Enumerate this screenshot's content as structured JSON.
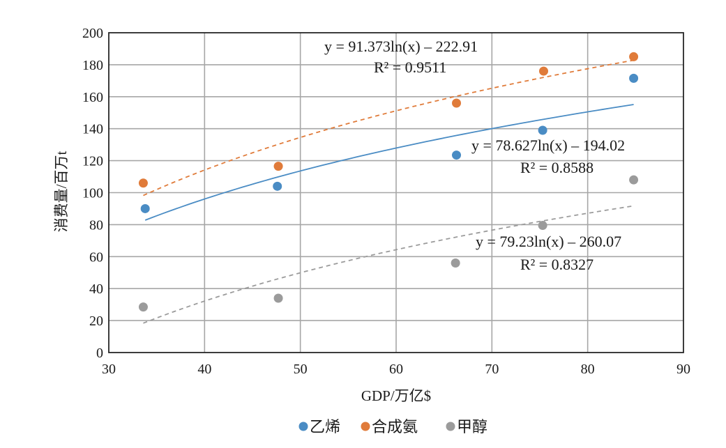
{
  "chart_data": {
    "type": "scatter",
    "xlabel": "GDP/万亿$",
    "ylabel": "消费量/百万t",
    "xlim": [
      30,
      90
    ],
    "ylim": [
      0,
      200
    ],
    "xticks": [
      30,
      40,
      50,
      60,
      70,
      80,
      90
    ],
    "yticks": [
      0,
      20,
      40,
      60,
      80,
      100,
      120,
      140,
      160,
      180,
      200
    ],
    "grid": true,
    "legend_position": "bottom",
    "series": [
      {
        "name": "乙烯",
        "color": "#4a8cc4",
        "x": [
          33.8,
          47.6,
          66.3,
          75.3,
          84.8
        ],
        "y": [
          90,
          104,
          123.5,
          139,
          171.5
        ],
        "trendline": {
          "type": "logarithmic",
          "a": 78.627,
          "b": -194.02,
          "style": "solid",
          "equation": "y = 78.627ln(x) – 194.02",
          "r2": "R² = 0.8588"
        }
      },
      {
        "name": "合成氨",
        "color": "#e07b3a",
        "x": [
          33.6,
          47.7,
          66.3,
          75.4,
          84.8
        ],
        "y": [
          106,
          116.5,
          156,
          176,
          185
        ],
        "trendline": {
          "type": "logarithmic",
          "a": 91.373,
          "b": -222.91,
          "style": "dashed",
          "equation": "y = 91.373ln(x) – 222.91",
          "r2": "R² = 0.9511"
        }
      },
      {
        "name": "甲醇",
        "color": "#9b9b9b",
        "x": [
          33.6,
          47.7,
          66.2,
          75.3,
          84.8
        ],
        "y": [
          28.5,
          34,
          56,
          79.5,
          108
        ],
        "trendline": {
          "type": "logarithmic",
          "a": 79.23,
          "b": -260.07,
          "style": "dashed",
          "equation": "y = 79.23ln(x) – 260.07",
          "r2": "R² = 0.8327"
        }
      }
    ]
  }
}
